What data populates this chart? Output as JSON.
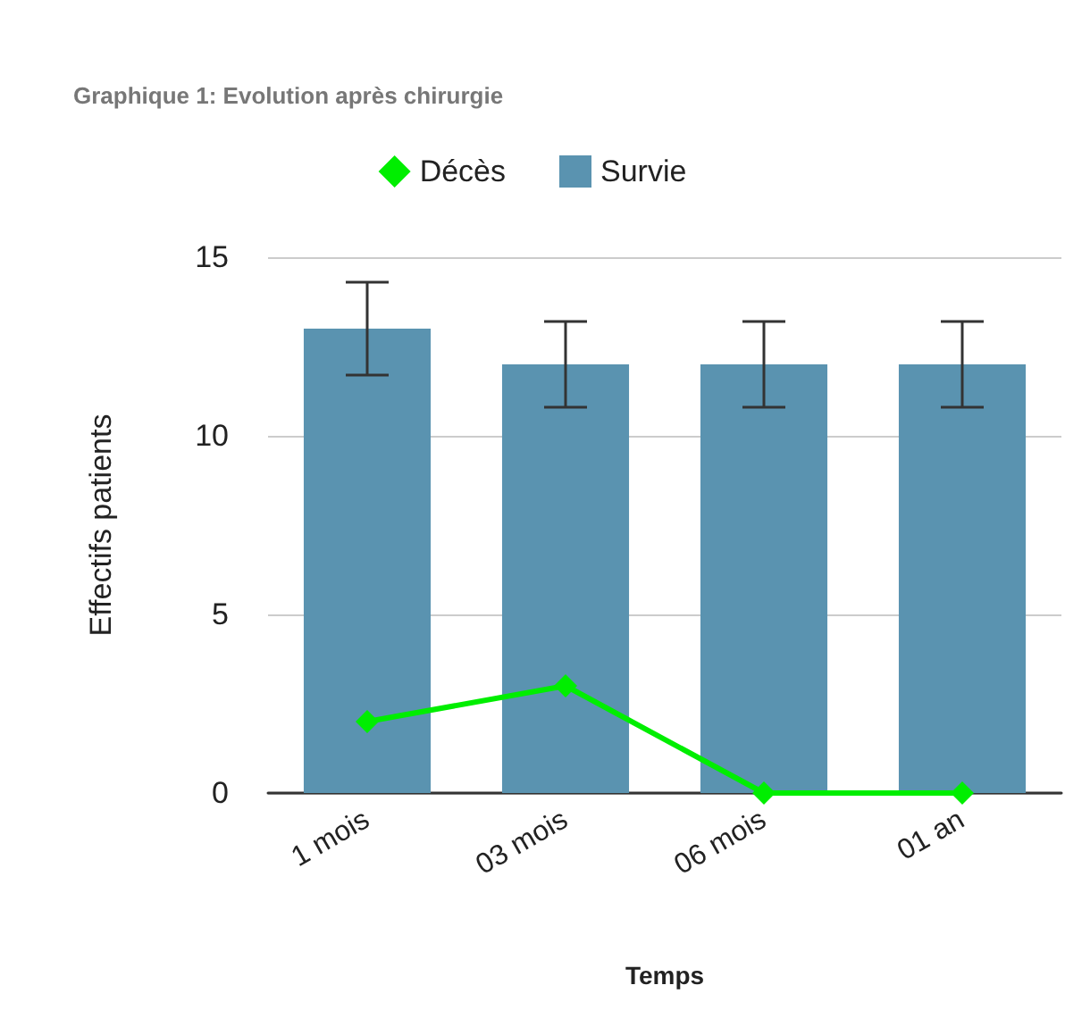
{
  "chart_data": {
    "type": "bar",
    "title": "Graphique 1: Evolution après chirurgie",
    "xlabel": "Temps",
    "ylabel": "Effectifs patients",
    "categories": [
      "1 mois",
      "03 mois",
      "06 mois",
      "01 an"
    ],
    "series": [
      {
        "name": "Décès",
        "type": "line",
        "color": "#00ee00",
        "values": [
          2,
          3,
          0,
          0
        ]
      },
      {
        "name": "Survie",
        "color": "#5a93b0",
        "values": [
          13,
          12,
          12,
          12
        ],
        "errors": [
          1.3,
          1.2,
          1.2,
          1.2
        ]
      }
    ],
    "ylim": [
      0,
      15
    ],
    "yticks": [
      0,
      5,
      10,
      15
    ],
    "grid": "y",
    "legend": "top",
    "marker": "diamond",
    "line_style": "solid"
  }
}
